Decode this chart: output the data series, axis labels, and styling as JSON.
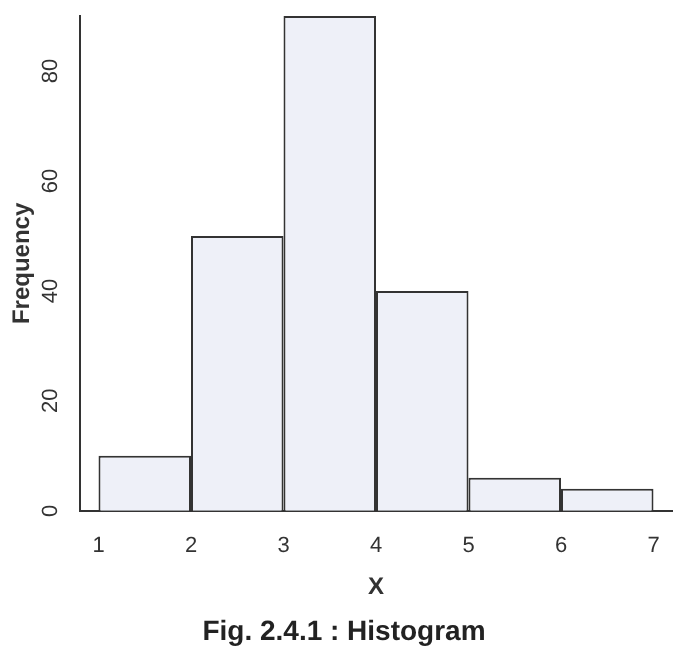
{
  "chart_data": {
    "type": "histogram",
    "xlabel": "X",
    "ylabel": "Frequency",
    "bins": [
      1,
      2,
      3,
      4,
      5,
      6,
      7
    ],
    "values": [
      10,
      50,
      90,
      40,
      6,
      4
    ],
    "color": "#eef0f8",
    "xlim": [
      0.8,
      7.2
    ],
    "xticks": [
      1,
      2,
      3,
      4,
      5,
      6,
      7
    ],
    "ylim": [
      0,
      90
    ],
    "yticks": [
      0,
      20,
      40,
      60,
      80
    ],
    "grid": false,
    "legend": false,
    "annotations": [
      "Fig. 2.4.1 : Histogram"
    ]
  }
}
